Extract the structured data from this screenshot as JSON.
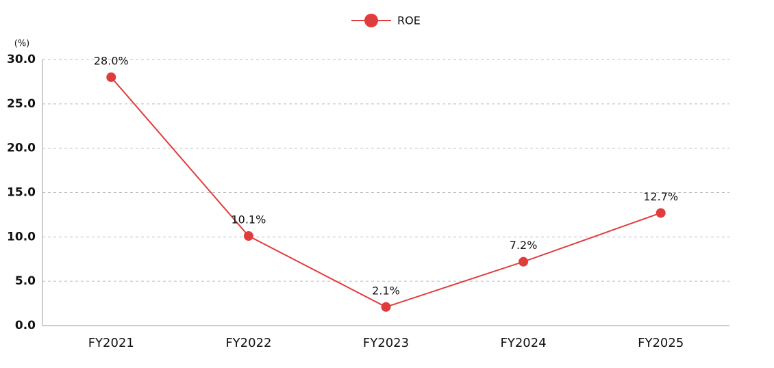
{
  "chart_data": {
    "type": "line",
    "y_label": "(%)",
    "categories": [
      "FY2021",
      "FY2022",
      "FY2023",
      "FY2024",
      "FY2025"
    ],
    "series": [
      {
        "name": "ROE",
        "color": "#e03c3c",
        "values": [
          28.0,
          10.1,
          2.1,
          7.2,
          12.7
        ],
        "value_labels": [
          "28.0%",
          "10.1%",
          "2.1%",
          "7.2%",
          "12.7%"
        ]
      }
    ],
    "ylim": [
      0,
      30
    ],
    "yticks": [
      {
        "value": 0,
        "label": "0.0"
      },
      {
        "value": 5,
        "label": "5.0"
      },
      {
        "value": 10,
        "label": "10.0"
      },
      {
        "value": 15,
        "label": "15.0"
      },
      {
        "value": 20,
        "label": "20.0"
      },
      {
        "value": 25,
        "label": "25.0"
      },
      {
        "value": 30,
        "label": "30.0"
      }
    ],
    "grid": true,
    "legend": "top"
  }
}
